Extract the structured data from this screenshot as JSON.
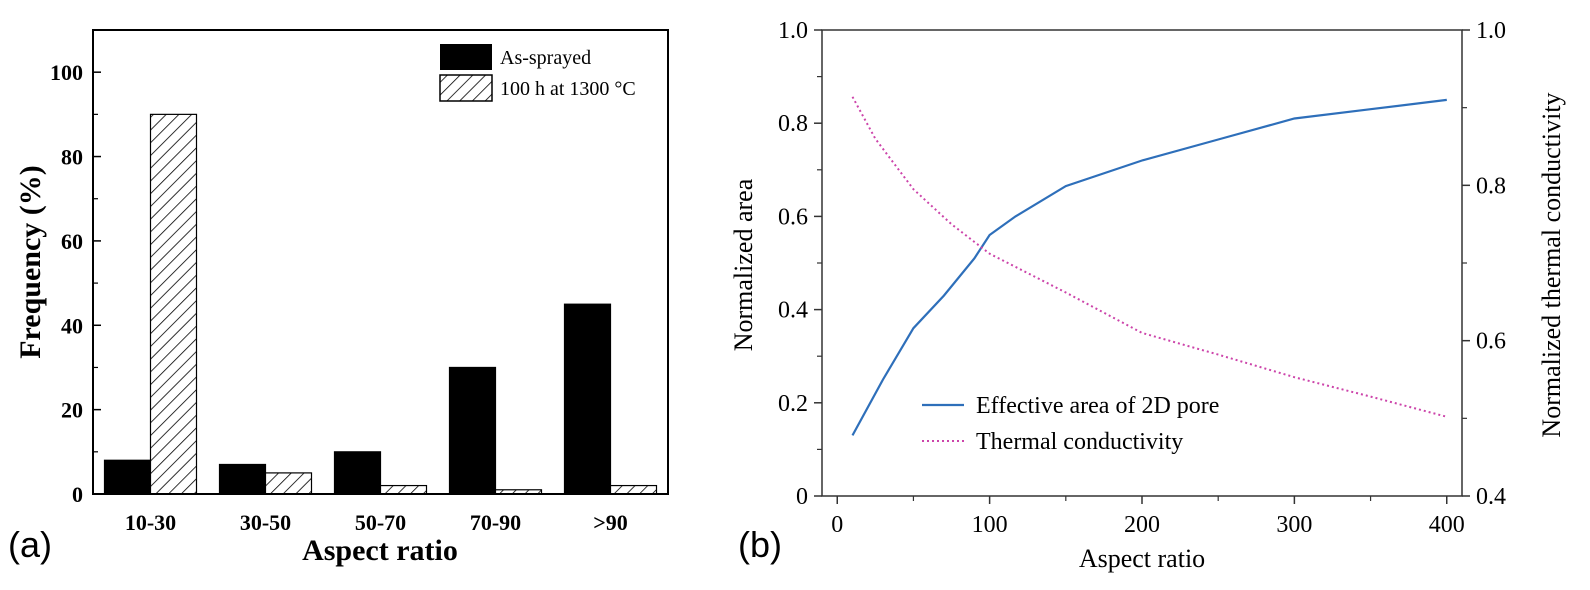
{
  "chart_data": [
    {
      "panel_label": "(a)",
      "type": "bar",
      "xlabel": "Aspect ratio",
      "ylabel": "Frequency (%)",
      "ylim": [
        0,
        110
      ],
      "yticks": [
        0,
        20,
        40,
        60,
        80,
        100
      ],
      "categories": [
        "10-30",
        "30-50",
        "50-70",
        "70-90",
        ">90"
      ],
      "series": [
        {
          "name": "As-sprayed",
          "fill": "solid",
          "color": "#000000",
          "values": [
            8,
            7,
            10,
            30,
            45
          ]
        },
        {
          "name": "100 h at 1300 °C",
          "fill": "hatched",
          "color": "#000000",
          "values": [
            90,
            5,
            2,
            1,
            2
          ]
        }
      ],
      "legend": "top-right",
      "grid": false
    },
    {
      "panel_label": "(b)",
      "type": "line",
      "xlabel": "Aspect ratio",
      "ylabel": "Normalized area",
      "ylabel_right": "Normalized thermal conductivity",
      "xlim": [
        -10,
        410
      ],
      "xticks": [
        0,
        100,
        200,
        300,
        400
      ],
      "ylim": [
        0,
        1.0
      ],
      "yticks": [
        "0",
        "0.2",
        "0.4",
        "0.6",
        "0.8",
        "1.0"
      ],
      "ylim_right": [
        0.4,
        1.0
      ],
      "yticks_right": [
        "0.4",
        "0.6",
        "0.8",
        "1.0"
      ],
      "series": [
        {
          "name": "Effective area of 2D pore",
          "axis": "left",
          "style": "solid",
          "color": "#2e6fba",
          "x": [
            10,
            30,
            50,
            70,
            90,
            100,
            117,
            150,
            200,
            250,
            300,
            350,
            400
          ],
          "y": [
            0.13,
            0.25,
            0.36,
            0.43,
            0.51,
            0.56,
            0.6,
            0.665,
            0.72,
            0.765,
            0.81,
            0.83,
            0.85
          ]
        },
        {
          "name": "Thermal conductivity",
          "axis": "right",
          "style": "dotted",
          "color": "#cc44aa",
          "x": [
            10,
            25,
            50,
            75,
            100,
            150,
            200,
            250,
            300,
            350,
            400
          ],
          "y": [
            0.914,
            0.86,
            0.795,
            0.75,
            0.712,
            0.662,
            0.61,
            0.582,
            0.553,
            0.528,
            0.502
          ]
        }
      ],
      "legend": "bottom-left",
      "grid": false
    }
  ]
}
